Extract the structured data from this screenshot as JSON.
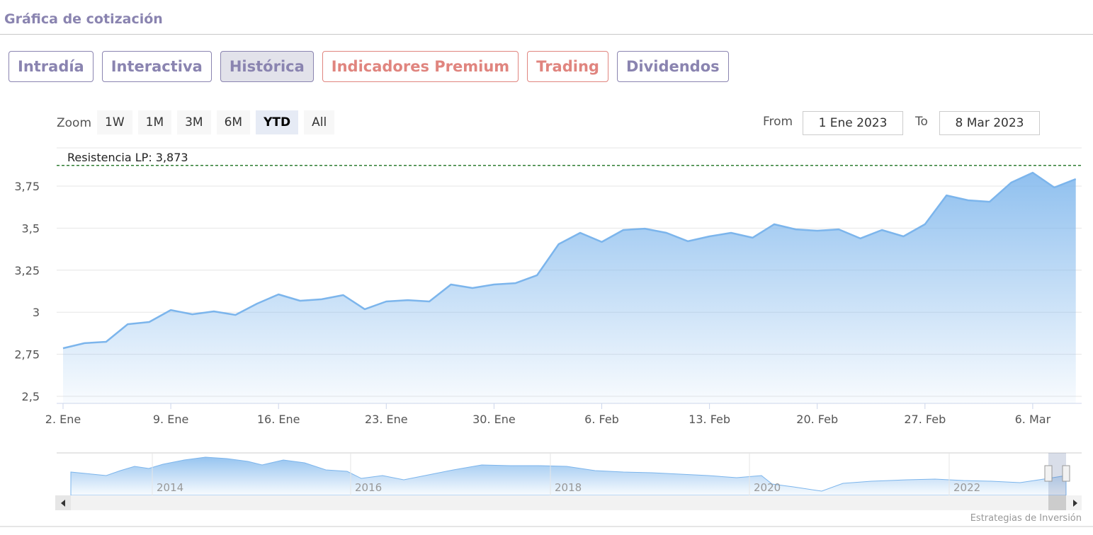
{
  "header": {
    "title": "Gráfica de cotización"
  },
  "tabs": {
    "items": [
      {
        "label": "Intradía",
        "color": "#8a84b0"
      },
      {
        "label": "Interactiva",
        "color": "#8a84b0"
      },
      {
        "label": "Histórica",
        "color": "#8a84b0"
      },
      {
        "label": "Indicadores Premium",
        "color": "#e0857f"
      },
      {
        "label": "Trading",
        "color": "#e0857f"
      },
      {
        "label": "Dividendos",
        "color": "#8a84b0"
      }
    ],
    "active": 2
  },
  "zoom": {
    "label": "Zoom",
    "buttons": [
      "1W",
      "1M",
      "3M",
      "6M",
      "YTD",
      "All"
    ],
    "active": 4
  },
  "range": {
    "from_label": "From",
    "from": "1 Ene 2023",
    "to_label": "To",
    "to": "8 Mar 2023"
  },
  "chart_data": {
    "type": "area",
    "categories": [
      "2. Ene",
      null,
      null,
      null,
      null,
      "9. Ene",
      null,
      null,
      null,
      null,
      "16. Ene",
      null,
      null,
      null,
      null,
      "23. Ene",
      null,
      null,
      null,
      null,
      "30. Ene",
      null,
      null,
      null,
      null,
      "6. Feb",
      null,
      null,
      null,
      null,
      "13. Feb",
      null,
      null,
      null,
      null,
      "20. Feb",
      null,
      null,
      null,
      null,
      "27. Feb",
      null,
      null,
      null,
      null,
      "6. Mar",
      null,
      null
    ],
    "series": [
      {
        "color": "#7cb5ec",
        "values": [
          2.786,
          2.816,
          2.824,
          2.929,
          2.942,
          3.013,
          2.988,
          3.005,
          2.984,
          3.051,
          3.106,
          3.068,
          3.077,
          3.102,
          3.018,
          3.064,
          3.072,
          3.064,
          3.165,
          3.144,
          3.165,
          3.173,
          3.22,
          3.405,
          3.472,
          3.418,
          3.489,
          3.497,
          3.472,
          3.422,
          3.451,
          3.472,
          3.443,
          3.523,
          3.493,
          3.485,
          3.493,
          3.439,
          3.489,
          3.451,
          3.523,
          3.695,
          3.666,
          3.657,
          3.771,
          3.83,
          3.742,
          3.792
        ]
      }
    ],
    "ylim": [
      2.458,
      3.973
    ],
    "yticks": [
      {
        "value": 2.5,
        "label": "2,5"
      },
      {
        "value": 2.75,
        "label": "2,75"
      },
      3,
      {
        "value": 3.25,
        "label": "3,25"
      },
      {
        "value": 3.5,
        "label": "3,5"
      },
      {
        "value": 3.75,
        "label": "3,75"
      }
    ],
    "grid": true,
    "annotations": [
      {
        "value": 3.873,
        "label": "Resistencia LP: 3,873",
        "color": "#2e7d32"
      }
    ]
  },
  "navigator": {
    "labels": [
      "2014",
      "2016",
      "2018",
      "2020",
      "2022"
    ]
  },
  "footer": {
    "credit": "Estrategias de Inversión"
  }
}
